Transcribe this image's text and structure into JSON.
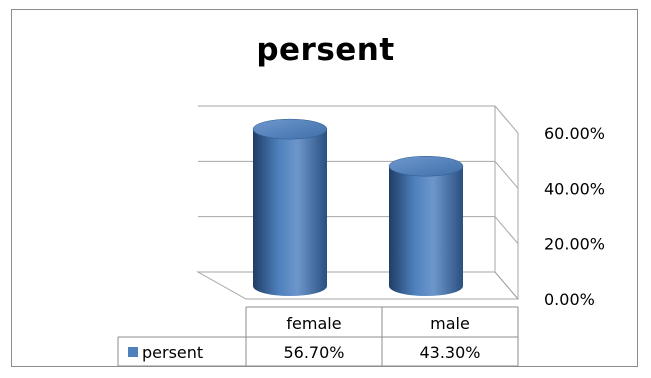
{
  "chart_data": {
    "type": "bar",
    "style": "3d-cylinder",
    "title": "persent",
    "categories": [
      "female",
      "male"
    ],
    "series": [
      {
        "name": "persent",
        "values": [
          0.567,
          0.433
        ],
        "display": [
          "56.70%",
          "43.30%"
        ],
        "color": "#4f81bd"
      }
    ],
    "ylim": [
      0,
      0.6
    ],
    "y_ticks": [
      {
        "value": 0.6,
        "label": "60.00%"
      },
      {
        "value": 0.4,
        "label": "40.00%"
      },
      {
        "value": 0.2,
        "label": "20.00%"
      },
      {
        "value": 0.0,
        "label": "0.00%"
      }
    ],
    "grid": true,
    "legend": "data-table",
    "colors": {
      "bar": "#4f81bd",
      "grid": "#a6a6a6",
      "axis": "#7f7f7f"
    }
  }
}
